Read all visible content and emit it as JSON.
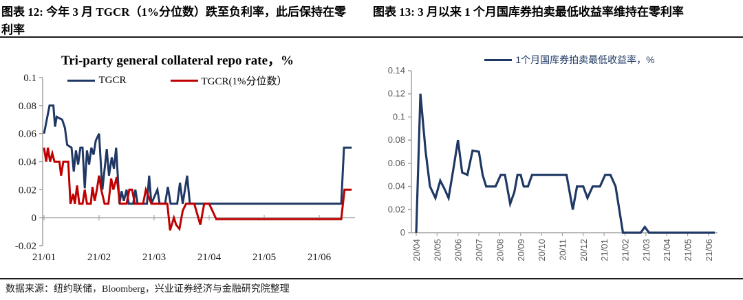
{
  "page": {
    "figures": [
      {
        "heading": "图表 12: 今年 3 月 TGCR（1%分位数）跌至负利率，此后保持在零利率"
      },
      {
        "heading": "图表 13: 3 月以来 1 个月国库券拍卖最低收益率维持在零利率"
      }
    ],
    "source_note": "数据来源：纽约联储，Bloomberg，兴业证券经济与金融研究院整理"
  },
  "colors": {
    "navy": "#1f3864",
    "red": "#c00000",
    "axis": "#a3a3a3"
  },
  "chart_data": [
    {
      "type": "line",
      "title": "Tri-party general collateral repo rate，%",
      "xlabel": "",
      "ylabel": "",
      "x_unit": "months since 2021-01",
      "xlim": [
        0,
        5.65
      ],
      "ylim": [
        -0.02,
        0.1
      ],
      "grid": false,
      "legend_position": "top-center",
      "y_ticks": [
        0.1,
        0.08,
        0.06,
        0.04,
        0.02,
        0,
        -0.02
      ],
      "y_tick_labels": [
        "0.1",
        "0.08",
        "0.06",
        "0.04",
        "0.02",
        "0",
        "-0.02"
      ],
      "x_tick_positions": [
        0,
        1,
        2,
        3,
        4,
        5
      ],
      "x_tick_labels": [
        "21/01",
        "21/02",
        "21/03",
        "21/04",
        "21/05",
        "21/06"
      ],
      "series": [
        {
          "name": "TGCR",
          "slug": "tgcr-line",
          "color_key": "navy",
          "points": [
            [
              0,
              0.06
            ],
            [
              0.05,
              0.07
            ],
            [
              0.1,
              0.08
            ],
            [
              0.17,
              0.08
            ],
            [
              0.2,
              0.065
            ],
            [
              0.23,
              0.072
            ],
            [
              0.33,
              0.07
            ],
            [
              0.38,
              0.064
            ],
            [
              0.42,
              0.052
            ],
            [
              0.5,
              0.05
            ],
            [
              0.54,
              0.033
            ],
            [
              0.58,
              0.048
            ],
            [
              0.62,
              0.038
            ],
            [
              0.66,
              0.05
            ],
            [
              0.7,
              0.05
            ],
            [
              0.74,
              0.021
            ],
            [
              0.78,
              0.048
            ],
            [
              0.82,
              0.038
            ],
            [
              0.86,
              0.05
            ],
            [
              0.9,
              0.045
            ],
            [
              0.94,
              0.055
            ],
            [
              1.0,
              0.06
            ],
            [
              1.06,
              0.02
            ],
            [
              1.14,
              0.049
            ],
            [
              1.18,
              0.03
            ],
            [
              1.23,
              0.043
            ],
            [
              1.27,
              0.035
            ],
            [
              1.31,
              0.05
            ],
            [
              1.37,
              0.01
            ],
            [
              1.41,
              0.019
            ],
            [
              1.45,
              0.012
            ],
            [
              1.5,
              0.02
            ],
            [
              1.54,
              0.01
            ],
            [
              1.62,
              0.01
            ],
            [
              1.66,
              0.02
            ],
            [
              1.7,
              0.01
            ],
            [
              1.87,
              0.01
            ],
            [
              1.91,
              0.03
            ],
            [
              1.95,
              0.01
            ],
            [
              2.06,
              0.02
            ],
            [
              2.1,
              0.01
            ],
            [
              2.2,
              0.01
            ],
            [
              2.25,
              0.022
            ],
            [
              2.3,
              0.01
            ],
            [
              2.42,
              0.01
            ],
            [
              2.47,
              0.025
            ],
            [
              2.52,
              0.01
            ],
            [
              2.6,
              0.03
            ],
            [
              2.65,
              0.01
            ],
            [
              5.4,
              0.01
            ],
            [
              5.45,
              0.05
            ],
            [
              5.59,
              0.05
            ]
          ]
        },
        {
          "name": "TGCR(1%分位数）",
          "slug": "tgcr-1pct-line",
          "color_key": "red",
          "points": [
            [
              0,
              0.05
            ],
            [
              0.04,
              0.04
            ],
            [
              0.07,
              0.05
            ],
            [
              0.11,
              0.04
            ],
            [
              0.15,
              0.046
            ],
            [
              0.19,
              0.04
            ],
            [
              0.28,
              0.04
            ],
            [
              0.31,
              0.03
            ],
            [
              0.35,
              0.04
            ],
            [
              0.44,
              0.04
            ],
            [
              0.48,
              0.01
            ],
            [
              0.53,
              0.017
            ],
            [
              0.56,
              0.01
            ],
            [
              0.6,
              0.023
            ],
            [
              0.64,
              0.01
            ],
            [
              0.7,
              0.01
            ],
            [
              0.74,
              0.02
            ],
            [
              0.78,
              0.01
            ],
            [
              0.85,
              0.01
            ],
            [
              0.88,
              0.022
            ],
            [
              0.92,
              0.012
            ],
            [
              0.96,
              0.02
            ],
            [
              1.0,
              0.03
            ],
            [
              1.04,
              0.02
            ],
            [
              1.1,
              0.01
            ],
            [
              1.17,
              0.01
            ],
            [
              1.22,
              0.028
            ],
            [
              1.26,
              0.02
            ],
            [
              1.32,
              0.029
            ],
            [
              1.38,
              0.01
            ],
            [
              1.5,
              0.01
            ],
            [
              1.55,
              0.02
            ],
            [
              1.6,
              0.02
            ],
            [
              1.65,
              0.01
            ],
            [
              1.8,
              0.01
            ],
            [
              1.85,
              0.02
            ],
            [
              1.95,
              0.01
            ],
            [
              2.16,
              0.01
            ],
            [
              2.24,
              0.01
            ],
            [
              2.29,
              -0.009
            ],
            [
              2.36,
              0
            ],
            [
              2.4,
              -0.005
            ],
            [
              2.46,
              -0.008
            ],
            [
              2.52,
              0.005
            ],
            [
              2.58,
              0.01
            ],
            [
              2.73,
              0.01
            ],
            [
              2.84,
              -0.005
            ],
            [
              2.91,
              0.01
            ],
            [
              3.0,
              0.01
            ],
            [
              3.13,
              -0.001
            ],
            [
              5.4,
              -0.001
            ],
            [
              5.46,
              0.02
            ],
            [
              5.59,
              0.02
            ]
          ]
        }
      ]
    },
    {
      "type": "line",
      "title": "",
      "xlabel": "",
      "ylabel": "",
      "x_unit": "months since 2020-04",
      "xlim": [
        0,
        14.45
      ],
      "ylim": [
        0,
        0.14
      ],
      "grid": false,
      "legend_position": "top-center",
      "y_ticks": [
        0.14,
        0.12,
        0.1,
        0.08,
        0.06,
        0.04,
        0.02,
        0
      ],
      "y_tick_labels": [
        "0.14",
        "0.12",
        "0.1",
        "0.08",
        "0.06",
        "0.04",
        "0.02",
        "0"
      ],
      "x_tick_positions": [
        0,
        1,
        2,
        3,
        4,
        5,
        6,
        7,
        8,
        9,
        10,
        11,
        12,
        13,
        14
      ],
      "x_tick_labels": [
        "20/04",
        "20/05",
        "20/06",
        "20/07",
        "20/08",
        "20/09",
        "20/10",
        "20/11",
        "20/12",
        "21/01",
        "21/02",
        "21/03",
        "21/04",
        "21/05",
        "21/06"
      ],
      "series": [
        {
          "name": "1个月国库券拍卖最低收益率，%",
          "slug": "tbill-min-yield-line",
          "color_key": "navy",
          "points": [
            [
              0,
              0
            ],
            [
              0.2,
              0.12
            ],
            [
              0.45,
              0.07
            ],
            [
              0.66,
              0.04
            ],
            [
              0.92,
              0.03
            ],
            [
              1.15,
              0.045
            ],
            [
              1.35,
              0.038
            ],
            [
              1.55,
              0.03
            ],
            [
              1.78,
              0.055
            ],
            [
              2.0,
              0.08
            ],
            [
              2.2,
              0.052
            ],
            [
              2.45,
              0.05
            ],
            [
              2.7,
              0.071
            ],
            [
              3.0,
              0.07
            ],
            [
              3.18,
              0.05
            ],
            [
              3.35,
              0.04
            ],
            [
              3.8,
              0.04
            ],
            [
              4.05,
              0.05
            ],
            [
              4.25,
              0.05
            ],
            [
              4.5,
              0.025
            ],
            [
              4.7,
              0.035
            ],
            [
              4.85,
              0.05
            ],
            [
              5.0,
              0.05
            ],
            [
              5.15,
              0.04
            ],
            [
              5.35,
              0.04
            ],
            [
              5.55,
              0.05
            ],
            [
              7.2,
              0.05
            ],
            [
              7.5,
              0.02
            ],
            [
              7.7,
              0.04
            ],
            [
              8.0,
              0.04
            ],
            [
              8.2,
              0.03
            ],
            [
              8.45,
              0.04
            ],
            [
              8.8,
              0.04
            ],
            [
              9.05,
              0.05
            ],
            [
              9.3,
              0.05
            ],
            [
              9.55,
              0.04
            ],
            [
              9.9,
              0
            ],
            [
              10.75,
              0
            ],
            [
              10.95,
              0.005
            ],
            [
              11.15,
              0
            ],
            [
              14.3,
              0
            ]
          ]
        }
      ]
    }
  ]
}
